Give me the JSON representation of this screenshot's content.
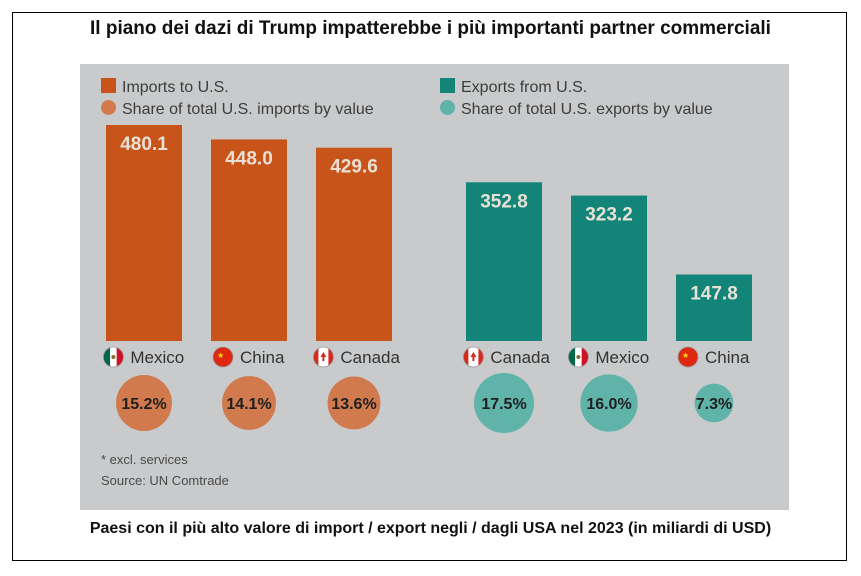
{
  "header": {
    "title": "Il piano dei dazi di Trump impatterebbe i più importanti partner commerciali",
    "subtitle": "Paesi con il più alto valore di import / export negli / dagli USA nel 2023 (in miliardi di USD)"
  },
  "legend": {
    "imports": "Imports to U.S.",
    "imports_share": "Share of total U.S. imports by value",
    "exports": "Exports from U.S.",
    "exports_share": "Share of total U.S. exports by value"
  },
  "notes": {
    "footnote": "* excl. services",
    "source": "Source: UN Comtrade"
  },
  "colors": {
    "imports_bar": "#c8541a",
    "imports_circle": "#d17a4e",
    "exports_bar": "#138478",
    "exports_circle": "#5fb3a9",
    "panel": "#c8cacb",
    "value_text": "#e9e1d6"
  },
  "chart_data": [
    {
      "type": "bar",
      "group": "imports",
      "categories": [
        "Mexico",
        "China",
        "Canada"
      ],
      "flags": [
        "mexico-flag-icon",
        "china-flag-icon",
        "canada-flag-icon"
      ],
      "values": [
        480.1,
        448.0,
        429.6
      ],
      "value_labels": [
        "480.1",
        "448.0",
        "429.6"
      ],
      "shares": [
        15.2,
        14.1,
        13.6
      ],
      "share_labels": [
        "15.2%",
        "14.1%",
        "13.6%"
      ],
      "ylim": [
        0,
        480.1
      ]
    },
    {
      "type": "bar",
      "group": "exports",
      "categories": [
        "Canada",
        "Mexico",
        "China"
      ],
      "flags": [
        "canada-flag-icon",
        "mexico-flag-icon",
        "china-flag-icon"
      ],
      "values": [
        352.8,
        323.2,
        147.8
      ],
      "value_labels": [
        "352.8",
        "323.2",
        "147.8"
      ],
      "shares": [
        17.5,
        16.0,
        7.3
      ],
      "share_labels": [
        "17.5%",
        "16.0%",
        "7.3%"
      ],
      "ylim": [
        0,
        480.1
      ]
    }
  ]
}
